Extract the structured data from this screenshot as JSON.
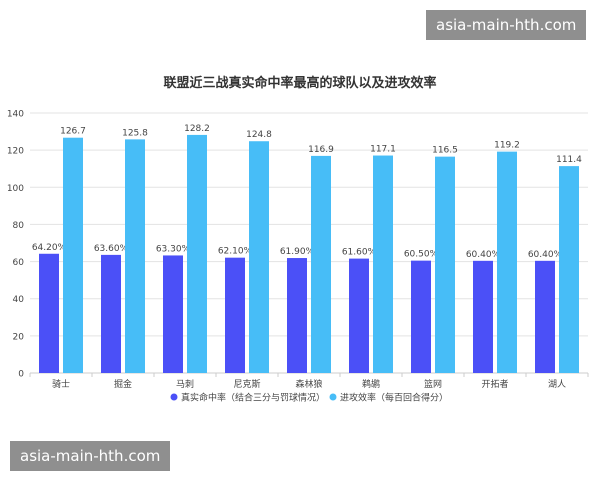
{
  "watermarks": {
    "top": "asia-main-hth.com",
    "bottom": "asia-main-hth.com"
  },
  "colors": {
    "series1": "#4b50f7",
    "series2": "#47bdf7",
    "grid": "#e3e3e3",
    "axis": "#cccccc",
    "text": "#444444",
    "title": "#333333"
  },
  "chart_data": {
    "type": "bar",
    "title": "联盟近三战真实命中率最高的球队以及进攻效率",
    "xlabel": "",
    "ylabel": "",
    "ylim": [
      0,
      140
    ],
    "yticks": [
      0,
      20,
      40,
      60,
      80,
      100,
      120,
      140
    ],
    "grid": true,
    "legend_position": "bottom",
    "categories": [
      "骑士",
      "掘金",
      "马刺",
      "尼克斯",
      "森林狼",
      "鹈鹕",
      "篮网",
      "开拓者",
      "湖人"
    ],
    "series": [
      {
        "name": "真实命中率（结合三分与罚球情况）",
        "values": [
          64.2,
          63.6,
          63.3,
          62.1,
          61.9,
          61.6,
          60.5,
          60.4,
          60.4
        ],
        "labels": [
          "64.20%",
          "63.60%",
          "63.30%",
          "62.10%",
          "61.90%",
          "61.60%",
          "60.50%",
          "60.40%",
          "60.40%"
        ]
      },
      {
        "name": "进攻效率（每百回合得分）",
        "values": [
          126.7,
          125.8,
          128.2,
          124.8,
          116.9,
          117.1,
          116.5,
          119.2,
          111.4
        ],
        "labels": [
          "126.7",
          "125.8",
          "128.2",
          "124.8",
          "116.9",
          "117.1",
          "116.5",
          "119.2",
          "111.4"
        ]
      }
    ]
  }
}
